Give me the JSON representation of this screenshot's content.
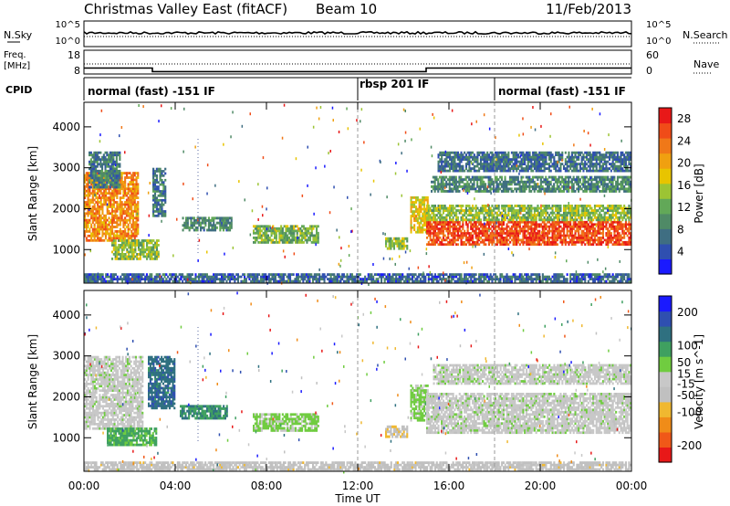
{
  "header": {
    "title": "Christmas Valley East (fitACF)",
    "beam": "Beam 10",
    "date": "11/Feb/2013"
  },
  "status_panels": {
    "noise": {
      "left_label": "N.Sky",
      "left_ticks": [
        "10^5",
        "10^0"
      ],
      "right_ticks": [
        "10^5",
        "10^0"
      ],
      "right_label": "N.Search"
    },
    "freq": {
      "left_label_line1": "Freq.",
      "left_label_line2": "[MHz]",
      "left_ticks": [
        "18",
        "8"
      ],
      "right_ticks": [
        "60",
        "0"
      ],
      "right_label": "Nave",
      "step_times_h": [
        0,
        3.0,
        3.0,
        15.0,
        15.0,
        24
      ],
      "step_values_mhz": [
        10.5,
        10.5,
        9.0,
        9.0,
        10.5,
        10.5
      ]
    },
    "cpid": {
      "label": "CPID",
      "segments": [
        {
          "label": "normal (fast) -151 IF",
          "start_h": 0,
          "end_h": 12
        },
        {
          "label": "rbsp 201 IF",
          "start_h": 12,
          "end_h": 18
        },
        {
          "label": "normal (fast) -151 IF",
          "start_h": 18,
          "end_h": 24
        }
      ]
    }
  },
  "x_axis": {
    "label": "Time UT",
    "ticks": [
      "00:00",
      "04:00",
      "08:00",
      "12:00",
      "16:00",
      "20:00",
      "00:00"
    ],
    "tick_hours": [
      0,
      4,
      8,
      12,
      16,
      20,
      24
    ]
  },
  "colors": {
    "power": [
      "#1a1aff",
      "#2f4fb0",
      "#3f6e82",
      "#4f8a66",
      "#62a858",
      "#9cc434",
      "#e8c400",
      "#f0a010",
      "#f07818",
      "#f04c18",
      "#e81818"
    ],
    "velocity": [
      "#e81818",
      "#f05818",
      "#f08c18",
      "#f0b830",
      "#c0c0c0",
      "#c8c8c8",
      "#70cc40",
      "#3fa060",
      "#2f7080",
      "#2f4fb0",
      "#1a1aff"
    ]
  },
  "chart_data": [
    {
      "type": "heatmap",
      "name": "power",
      "ylabel": "Slant Range [km]",
      "xlabel": "",
      "xlim_h": [
        0,
        24
      ],
      "ylim_km": [
        180,
        4600
      ],
      "yticks": [
        1000,
        2000,
        3000,
        4000
      ],
      "colorbar": {
        "label": "Power [dB]",
        "ticks": [
          4,
          8,
          12,
          16,
          20,
          24,
          28
        ],
        "range": [
          0,
          30
        ]
      },
      "dashed_time_lines_h": [
        12,
        18
      ],
      "dotted_time_lines_h": [
        5
      ],
      "echo_regions": [
        {
          "t_start": 0.0,
          "t_end": 2.4,
          "r_low": 1200,
          "r_high": 2900,
          "level": 22
        },
        {
          "t_start": 0.2,
          "t_end": 1.6,
          "r_low": 2500,
          "r_high": 3400,
          "level": 8
        },
        {
          "t_start": 1.2,
          "t_end": 3.3,
          "r_low": 750,
          "r_high": 1250,
          "level": 14
        },
        {
          "t_start": 3.0,
          "t_end": 3.6,
          "r_low": 1800,
          "r_high": 3000,
          "level": 8
        },
        {
          "t_start": 4.3,
          "t_end": 6.5,
          "r_low": 1450,
          "r_high": 1800,
          "level": 9
        },
        {
          "t_start": 7.4,
          "t_end": 10.3,
          "r_low": 1150,
          "r_high": 1600,
          "level": 13
        },
        {
          "t_start": 13.2,
          "t_end": 14.2,
          "r_low": 1000,
          "r_high": 1300,
          "level": 14
        },
        {
          "t_start": 14.3,
          "t_end": 15.1,
          "r_low": 1400,
          "r_high": 2300,
          "level": 18
        },
        {
          "t_start": 15.0,
          "t_end": 24.0,
          "r_low": 1100,
          "r_high": 1700,
          "level": 26
        },
        {
          "t_start": 15.0,
          "t_end": 24.0,
          "r_low": 1700,
          "r_high": 2100,
          "level": 14
        },
        {
          "t_start": 15.2,
          "t_end": 24.0,
          "r_low": 2400,
          "r_high": 2800,
          "level": 9
        },
        {
          "t_start": 15.5,
          "t_end": 24.0,
          "r_low": 2900,
          "r_high": 3400,
          "level": 7
        },
        {
          "t_start": 0.0,
          "t_end": 24.0,
          "r_low": 200,
          "r_high": 420,
          "level": 6
        }
      ]
    },
    {
      "type": "heatmap",
      "name": "velocity",
      "ylabel": "Slant Range [km]",
      "xlabel": "Time UT",
      "xlim_h": [
        0,
        24
      ],
      "ylim_km": [
        180,
        4600
      ],
      "yticks": [
        1000,
        2000,
        3000,
        4000
      ],
      "colorbar": {
        "label": "Velocity [m s^-1]",
        "ticks": [
          200,
          100,
          50,
          15,
          -15,
          -50,
          -100,
          -200
        ],
        "range": [
          -250,
          250
        ]
      },
      "dashed_time_lines_h": [
        12,
        18
      ],
      "dotted_time_lines_h": [
        5
      ],
      "echo_regions": [
        {
          "t_start": 0.0,
          "t_end": 2.6,
          "r_low": 1200,
          "r_high": 3000,
          "level": 0
        },
        {
          "t_start": 1.0,
          "t_end": 3.2,
          "r_low": 800,
          "r_high": 1250,
          "level": 80
        },
        {
          "t_start": 2.8,
          "t_end": 4.0,
          "r_low": 1700,
          "r_high": 3000,
          "level": 140
        },
        {
          "t_start": 4.2,
          "t_end": 6.3,
          "r_low": 1450,
          "r_high": 1800,
          "level": 110
        },
        {
          "t_start": 7.4,
          "t_end": 10.3,
          "r_low": 1150,
          "r_high": 1600,
          "level": 35
        },
        {
          "t_start": 13.2,
          "t_end": 14.2,
          "r_low": 1000,
          "r_high": 1300,
          "level": -60
        },
        {
          "t_start": 14.3,
          "t_end": 15.1,
          "r_low": 1400,
          "r_high": 2300,
          "level": 40
        },
        {
          "t_start": 15.0,
          "t_end": 24.0,
          "r_low": 1100,
          "r_high": 2100,
          "level": 0
        },
        {
          "t_start": 15.3,
          "t_end": 24.0,
          "r_low": 2300,
          "r_high": 2800,
          "level": 0
        },
        {
          "t_start": 0.0,
          "t_end": 24.0,
          "r_low": 200,
          "r_high": 420,
          "level": -40
        }
      ]
    }
  ]
}
